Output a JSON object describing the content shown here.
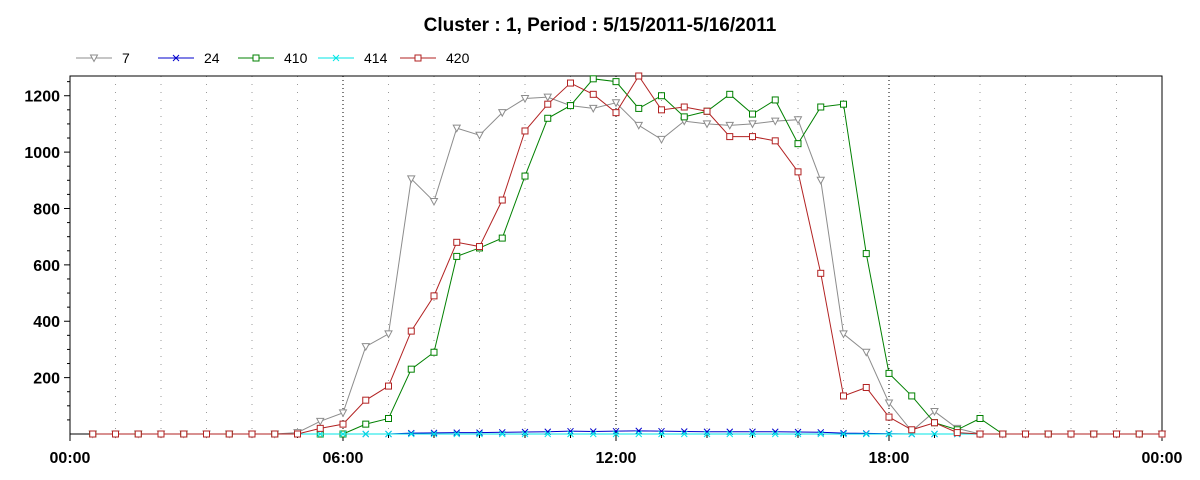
{
  "chart_data": {
    "type": "line",
    "title": "Cluster : 1, Period : 5/15/2011-5/16/2011",
    "xlabel": "",
    "ylabel": "",
    "x_tick_labels": [
      "00:00",
      "06:00",
      "12:00",
      "18:00",
      "00:00"
    ],
    "y_ticks": [
      200,
      400,
      600,
      800,
      1000,
      1200
    ],
    "ylim": [
      0,
      1270
    ],
    "xlim_hours": [
      0,
      24
    ],
    "grid": "vertical dotted",
    "legend_position": "top-left",
    "x_hours": [
      0.5,
      1,
      1.5,
      2,
      2.5,
      3,
      3.5,
      4,
      4.5,
      5,
      5.5,
      6,
      6.5,
      7,
      7.5,
      8,
      8.5,
      9,
      9.5,
      10,
      10.5,
      11,
      11.5,
      12,
      12.5,
      13,
      13.5,
      14,
      14.5,
      15,
      15.5,
      16,
      16.5,
      17,
      17.5,
      18,
      18.5,
      19,
      19.5,
      20,
      20.5,
      21,
      21.5,
      22,
      22.5,
      23,
      23.5,
      24
    ],
    "series": [
      {
        "name": "7",
        "color": "#8c8c8c",
        "marker": "triangle-down",
        "values": [
          0,
          0,
          0,
          0,
          0,
          0,
          0,
          0,
          0,
          5,
          45,
          75,
          310,
          355,
          905,
          825,
          1085,
          1060,
          1140,
          1190,
          1195,
          1165,
          1155,
          1175,
          1095,
          1045,
          1110,
          1100,
          1095,
          1100,
          1110,
          1115,
          900,
          355,
          290,
          110,
          10,
          80,
          20,
          0,
          0,
          0,
          0,
          0,
          0,
          0,
          0,
          0
        ]
      },
      {
        "name": "24",
        "color": "#0000cc",
        "marker": "x",
        "values": [
          0,
          0,
          0,
          0,
          0,
          0,
          0,
          0,
          0,
          0,
          0,
          0,
          0,
          0,
          3,
          4,
          5,
          5,
          6,
          7,
          8,
          10,
          9,
          10,
          11,
          10,
          9,
          8,
          8,
          8,
          8,
          7,
          6,
          3,
          2,
          1,
          0,
          0,
          0,
          0,
          0,
          0,
          0,
          0,
          0,
          0,
          0,
          0
        ]
      },
      {
        "name": "410",
        "color": "#008000",
        "marker": "square",
        "values": [
          0,
          0,
          0,
          0,
          0,
          0,
          0,
          0,
          0,
          0,
          0,
          0,
          35,
          55,
          230,
          290,
          630,
          660,
          695,
          915,
          1120,
          1165,
          1260,
          1250,
          1155,
          1200,
          1125,
          1145,
          1205,
          1135,
          1185,
          1030,
          1160,
          1170,
          640,
          215,
          135,
          40,
          15,
          55,
          0,
          0,
          0,
          0,
          0,
          0,
          0,
          0
        ]
      },
      {
        "name": "414",
        "color": "#00e5e5",
        "marker": "x",
        "values": [
          0,
          0,
          0,
          0,
          0,
          0,
          0,
          0,
          0,
          0,
          0,
          0,
          0,
          0,
          0,
          0,
          0,
          0,
          0,
          0,
          0,
          0,
          0,
          0,
          0,
          0,
          0,
          0,
          0,
          0,
          0,
          0,
          0,
          0,
          0,
          0,
          0,
          0,
          0,
          0,
          0,
          0,
          0,
          0,
          0,
          0,
          0,
          0
        ]
      },
      {
        "name": "420",
        "color": "#b22222",
        "marker": "square",
        "values": [
          0,
          0,
          0,
          0,
          0,
          0,
          0,
          0,
          0,
          0,
          20,
          35,
          120,
          170,
          365,
          490,
          680,
          665,
          830,
          1075,
          1170,
          1245,
          1205,
          1140,
          1270,
          1150,
          1160,
          1145,
          1055,
          1055,
          1040,
          930,
          570,
          135,
          165,
          60,
          15,
          40,
          5,
          0,
          0,
          0,
          0,
          0,
          0,
          0,
          0,
          0
        ]
      }
    ]
  }
}
